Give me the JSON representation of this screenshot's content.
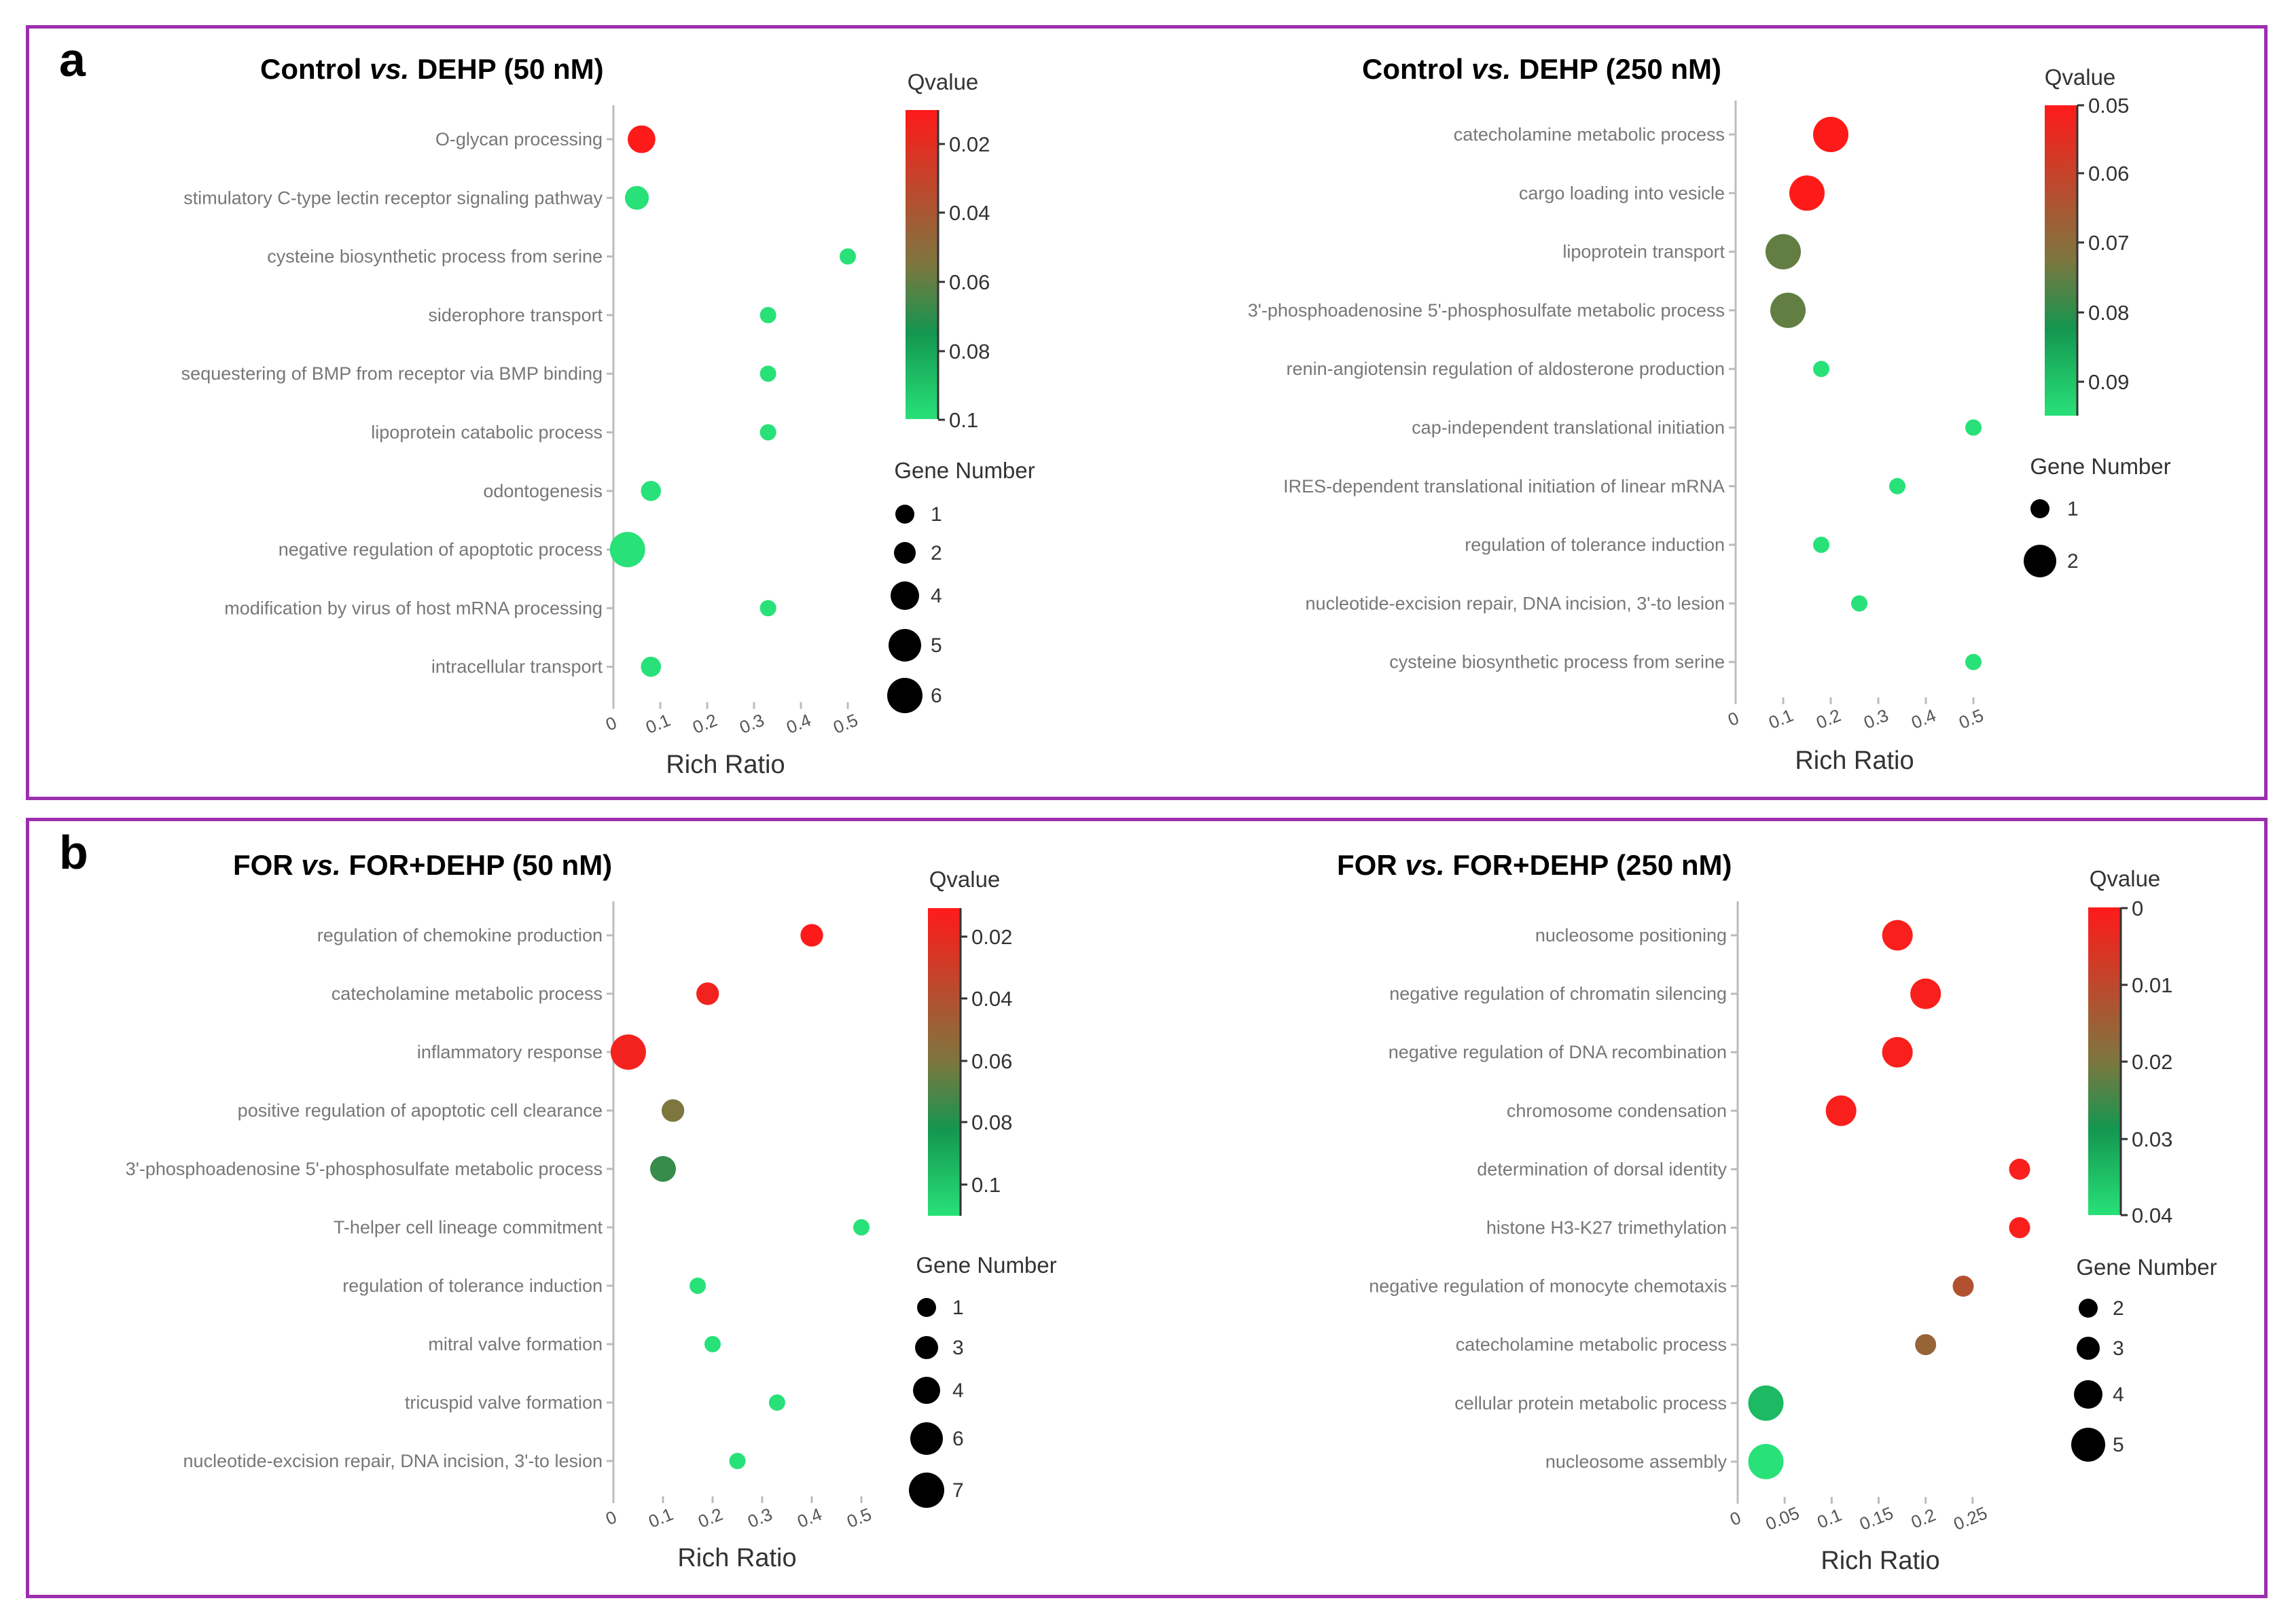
{
  "panels": [
    {
      "label": "a"
    },
    {
      "label": "b"
    }
  ],
  "chart_data": [
    {
      "type": "scatter",
      "title_left": "Control ",
      "title_italic": "vs.",
      "title_right": " DEHP (50 nM)",
      "xlabel": "Rich Ratio",
      "xlim": [
        0,
        0.5
      ],
      "xticks": [
        "0",
        "0.1",
        "0.2",
        "0.3",
        "0.4",
        "0.5"
      ],
      "categories": [
        "O-glycan processing",
        "stimulatory C-type lectin receptor signaling pathway",
        "cysteine biosynthetic process from serine",
        "siderophore transport",
        "sequestering of BMP from receptor via BMP binding",
        "lipoprotein catabolic process",
        "odontogenesis",
        "negative regulation of apoptotic process",
        "modification by virus of host mRNA processing",
        "intracellular transport"
      ],
      "x": [
        0.06,
        0.05,
        0.5,
        0.33,
        0.33,
        0.33,
        0.08,
        0.03,
        0.33,
        0.08
      ],
      "qvalue": [
        0.01,
        0.1,
        0.1,
        0.1,
        0.1,
        0.1,
        0.1,
        0.1,
        0.1,
        0.1
      ],
      "gene_number": [
        4,
        3,
        1,
        1,
        1,
        1,
        2,
        6,
        1,
        2
      ],
      "color_title": "Qvalue",
      "color_ticks": [
        "0.02",
        "0.04",
        "0.06",
        "0.08",
        "0.1"
      ],
      "color_range": [
        0.01,
        0.1
      ],
      "size_title": "Gene Number",
      "size_legend": [
        "1",
        "2",
        "4",
        "5",
        "6"
      ]
    },
    {
      "type": "scatter",
      "title_left": "Control ",
      "title_italic": "vs.",
      "title_right": " DEHP (250 nM)",
      "xlabel": "Rich Ratio",
      "xlim": [
        0,
        0.5
      ],
      "xticks": [
        "0",
        "0.1",
        "0.2",
        "0.3",
        "0.4",
        "0.5"
      ],
      "categories": [
        "catecholamine metabolic process",
        "cargo loading into vesicle",
        "lipoprotein transport",
        "3'-phosphoadenosine 5'-phosphosulfate metabolic process",
        "renin-angiotensin regulation of aldosterone production",
        "cap-independent translational initiation",
        "IRES-dependent translational initiation of linear mRNA",
        "regulation of tolerance induction",
        "nucleotide-excision repair, DNA incision, 3'-to lesion",
        "cysteine biosynthetic process from serine"
      ],
      "x": [
        0.2,
        0.15,
        0.1,
        0.11,
        0.18,
        0.5,
        0.34,
        0.18,
        0.26,
        0.5
      ],
      "qvalue": [
        0.05,
        0.05,
        0.075,
        0.075,
        0.095,
        0.095,
        0.095,
        0.095,
        0.095,
        0.095
      ],
      "gene_number": [
        2,
        2,
        2,
        2,
        1,
        1,
        1,
        1,
        1,
        1
      ],
      "color_title": "Qvalue",
      "color_ticks": [
        "0.05",
        "0.06",
        "0.07",
        "0.08",
        "0.09"
      ],
      "color_range": [
        0.05,
        0.095
      ],
      "size_title": "Gene Number",
      "size_legend": [
        "1",
        "2"
      ]
    },
    {
      "type": "scatter",
      "title_left": "FOR ",
      "title_italic": "vs.",
      "title_right": " FOR+DEHP (50 nM)",
      "xlabel": "Rich Ratio",
      "xlim": [
        0,
        0.5
      ],
      "xticks": [
        "0",
        "0.1",
        "0.2",
        "0.3",
        "0.4",
        "0.5"
      ],
      "categories": [
        "regulation of chemokine production",
        "catecholamine metabolic process",
        "inflammatory response",
        "positive regulation of apoptotic cell clearance",
        "3'-phosphoadenosine 5'-phosphosulfate metabolic process",
        "T-helper cell lineage commitment",
        "regulation of tolerance induction",
        "mitral valve formation",
        "tricuspid valve formation",
        "nucleotide-excision repair, DNA incision, 3'-to lesion"
      ],
      "x": [
        0.4,
        0.19,
        0.03,
        0.12,
        0.1,
        0.5,
        0.17,
        0.2,
        0.33,
        0.25
      ],
      "qvalue": [
        0.01,
        0.015,
        0.015,
        0.06,
        0.075,
        0.11,
        0.11,
        0.11,
        0.11,
        0.11
      ],
      "gene_number": [
        3,
        3,
        7,
        3,
        4,
        1,
        1,
        1,
        1,
        1
      ],
      "color_title": "Qvalue",
      "color_ticks": [
        "0.02",
        "0.04",
        "0.06",
        "0.08",
        "0.1"
      ],
      "color_range": [
        0.01,
        0.11
      ],
      "size_title": "Gene Number",
      "size_legend": [
        "1",
        "3",
        "4",
        "6",
        "7"
      ]
    },
    {
      "type": "scatter",
      "title_left": "FOR ",
      "title_italic": "vs.",
      "title_right": " FOR+DEHP (250 nM)",
      "xlabel": "Rich Ratio",
      "xlim": [
        0,
        0.3
      ],
      "xticks": [
        "0",
        "0.05",
        "0.1",
        "0.15",
        "0.2",
        "0.25"
      ],
      "categories": [
        "nucleosome positioning",
        "negative regulation of chromatin silencing",
        "negative regulation of DNA recombination",
        "chromosome condensation",
        "determination of dorsal identity",
        "histone H3-K27 trimethylation",
        "negative regulation of monocyte chemotaxis",
        "catecholamine metabolic process",
        "cellular protein metabolic process",
        "nucleosome assembly"
      ],
      "x": [
        0.17,
        0.2,
        0.17,
        0.11,
        0.3,
        0.3,
        0.24,
        0.2,
        0.03,
        0.03
      ],
      "qvalue": [
        0.001,
        0.001,
        0.001,
        0.001,
        0.001,
        0.001,
        0.012,
        0.016,
        0.034,
        0.04
      ],
      "gene_number": [
        4,
        4,
        4,
        4,
        2,
        2,
        2,
        2,
        5,
        5
      ],
      "color_title": "Qvalue",
      "color_ticks": [
        "0",
        "0.01",
        "0.02",
        "0.03",
        "0.04"
      ],
      "color_range": [
        0,
        0.04
      ],
      "size_title": "Gene Number",
      "size_legend": [
        "2",
        "3",
        "4",
        "5"
      ]
    }
  ]
}
